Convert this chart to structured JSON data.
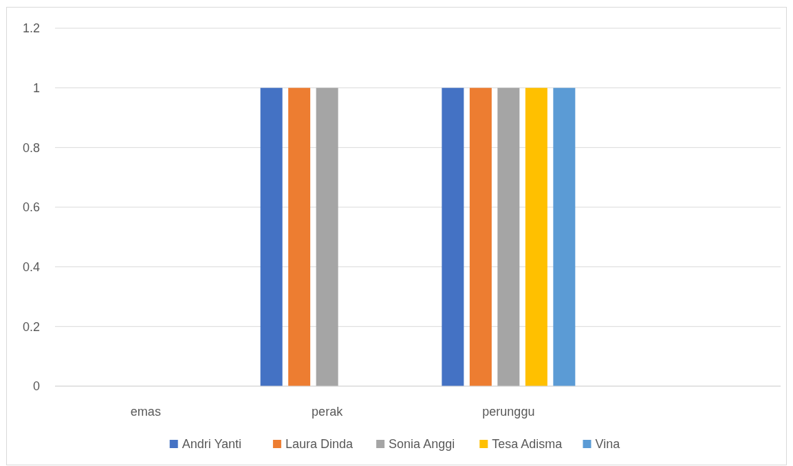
{
  "chart_data": {
    "type": "bar",
    "categories": [
      "emas",
      "perak",
      "perunggu",
      null
    ],
    "series": [
      {
        "name": "Andri Yanti",
        "color": "#4472c4",
        "values": [
          null,
          1,
          1,
          null
        ]
      },
      {
        "name": "Laura Dinda",
        "color": "#ed7d31",
        "values": [
          null,
          1,
          1,
          null
        ]
      },
      {
        "name": "Sonia Anggi",
        "color": "#a5a5a5",
        "values": [
          null,
          1,
          1,
          null
        ]
      },
      {
        "name": "Tesa Adisma",
        "color": "#ffc000",
        "values": [
          null,
          null,
          1,
          null
        ]
      },
      {
        "name": "Vina",
        "color": "#5b9bd5",
        "values": [
          null,
          null,
          1,
          null
        ]
      }
    ],
    "ylim": [
      0,
      1.2
    ],
    "yticks": [
      0,
      0.2,
      0.4,
      0.6,
      0.8,
      1,
      1.2
    ],
    "grid": "y",
    "legend": "bottom"
  }
}
